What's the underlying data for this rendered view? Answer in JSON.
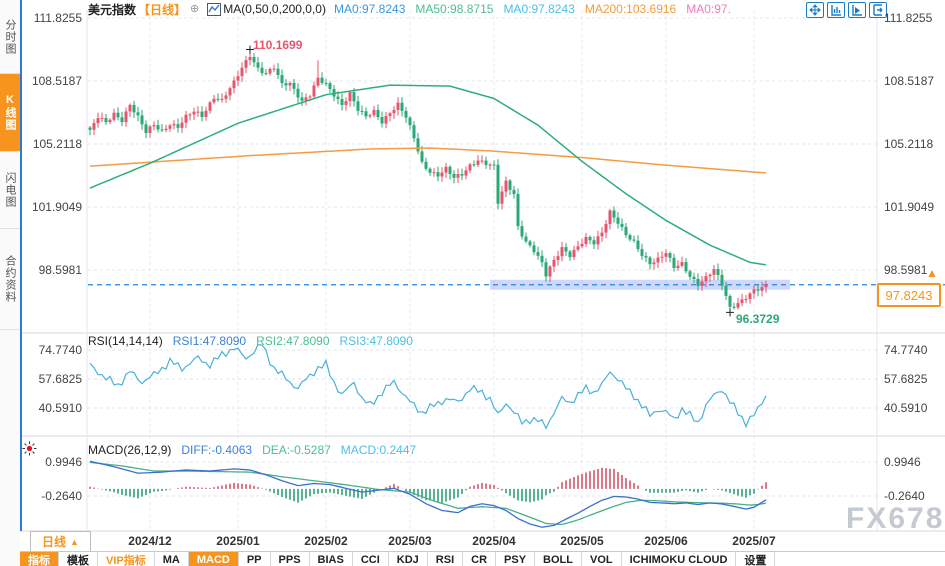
{
  "header": {
    "symbol": "美元指数",
    "period": "【日线】",
    "add_icon": "⊕",
    "ma_settings": "MA(0,50,0,200,0,0)",
    "ma_values": [
      {
        "label": "MA0:97.8243",
        "color": "#3b97e3"
      },
      {
        "label": "MA50:98.8715",
        "color": "#4cc08f"
      },
      {
        "label": "MA0:97.8243",
        "color": "#49c0e8"
      },
      {
        "label": "MA200:103.6916",
        "color": "#f59a3d"
      },
      {
        "label": "MA0:97.",
        "color": "#f07ab8"
      }
    ],
    "icons": [
      "pan-crosshair-icon",
      "axis-scale-icon",
      "axis-scroll-icon",
      "snap-latest-icon"
    ]
  },
  "sidebar": {
    "tabs": [
      {
        "label": "分时图",
        "active": false
      },
      {
        "label": "K线图",
        "active": true
      },
      {
        "label": "闪电图",
        "active": false
      },
      {
        "label": "合约资料",
        "active": false
      }
    ]
  },
  "annotations": {
    "high_label": "110.1699",
    "low_label": "96.3729",
    "last_price_label": "97.8243",
    "badge_arrow": "▲"
  },
  "panes": {
    "rsi": {
      "title": "RSI(14,14,14)",
      "rsi1": "RSI1:47.8090",
      "rsi2": "RSI2:47.8090",
      "rsi3": "RSI3:47.8090"
    },
    "macd": {
      "title": "MACD(26,12,9)",
      "diff": "DIFF:-0.4063",
      "dea": "DEA:-0.5287",
      "macd": "MACD:0.2447"
    }
  },
  "x_axis": {
    "period_label": "日线",
    "period_arrow": "▲",
    "dates": [
      "2024/12",
      "2025/01",
      "2025/02",
      "2025/03",
      "2025/04",
      "2025/05",
      "2025/06",
      "2025/07"
    ]
  },
  "bottom_toolbar": {
    "items": [
      {
        "label": "指标",
        "style": "active"
      },
      {
        "label": "模板",
        "style": ""
      },
      {
        "label": "VIP指标",
        "style": "vip"
      },
      {
        "label": "MA",
        "style": ""
      },
      {
        "label": "MACD",
        "style": "active"
      },
      {
        "label": "PP",
        "style": ""
      },
      {
        "label": "PPS",
        "style": ""
      },
      {
        "label": "BIAS",
        "style": ""
      },
      {
        "label": "CCI",
        "style": ""
      },
      {
        "label": "KDJ",
        "style": ""
      },
      {
        "label": "RSI",
        "style": ""
      },
      {
        "label": "CR",
        "style": ""
      },
      {
        "label": "PSY",
        "style": ""
      },
      {
        "label": "BOLL",
        "style": ""
      },
      {
        "label": "VOL",
        "style": ""
      },
      {
        "label": "ICHIMOKU CLOUD",
        "style": ""
      },
      {
        "label": "设置",
        "style": ""
      }
    ]
  },
  "watermark": {
    "text": "FX678"
  },
  "colors": {
    "candle_up": "#e4566e",
    "candle_down": "#2aa876",
    "ma50_line": "#2fae7c",
    "ma200_line": "#f59b45",
    "last_price_line": "#1e88e5",
    "highlight_band": "rgba(128,150,245,0.38)",
    "rsi_line": "#4ab0d9",
    "macd_diff": "#3b6fd0",
    "macd_dea": "#49b08a",
    "hist_pos": "#d4556a",
    "hist_neg": "#2f9e77",
    "accent": "#f7941d"
  },
  "chart_data": [
    {
      "type": "candlestick",
      "title": "美元指数 日线 (US Dollar Index, daily)",
      "days": 170,
      "y_ticks": [
        111.8255,
        108.5187,
        105.2118,
        101.9049,
        98.5981
      ],
      "months": [
        {
          "label": "2024/12",
          "day": 15
        },
        {
          "label": "2025/01",
          "day": 37
        },
        {
          "label": "2025/02",
          "day": 59
        },
        {
          "label": "2025/03",
          "day": 80
        },
        {
          "label": "2025/04",
          "day": 101
        },
        {
          "label": "2025/05",
          "day": 123
        },
        {
          "label": "2025/06",
          "day": 144
        },
        {
          "label": "2025/07",
          "day": 166
        }
      ],
      "close_anchors": [
        [
          0,
          105.9
        ],
        [
          2,
          106.6
        ],
        [
          4,
          106.3
        ],
        [
          6,
          106.8
        ],
        [
          8,
          106.5
        ],
        [
          10,
          107.3
        ],
        [
          12,
          106.6
        ],
        [
          14,
          105.8
        ],
        [
          16,
          106.2
        ],
        [
          18,
          105.9
        ],
        [
          20,
          106.3
        ],
        [
          22,
          106.1
        ],
        [
          24,
          106.6
        ],
        [
          26,
          106.9
        ],
        [
          28,
          106.7
        ],
        [
          31,
          107.7
        ],
        [
          33,
          107.5
        ],
        [
          36,
          108.4
        ],
        [
          38,
          109.2
        ],
        [
          40,
          109.9
        ],
        [
          42,
          109.2
        ],
        [
          44,
          108.9
        ],
        [
          46,
          109.2
        ],
        [
          48,
          108.3
        ],
        [
          50,
          108.4
        ],
        [
          53,
          107.5
        ],
        [
          55,
          107.8
        ],
        [
          57,
          108.6
        ],
        [
          59,
          108.3
        ],
        [
          61,
          107.8
        ],
        [
          63,
          107.3
        ],
        [
          65,
          107.9
        ],
        [
          67,
          107.0
        ],
        [
          69,
          106.6
        ],
        [
          71,
          106.9
        ],
        [
          73,
          106.4
        ],
        [
          75,
          106.9
        ],
        [
          77,
          107.3
        ],
        [
          79,
          106.6
        ],
        [
          81,
          105.5
        ],
        [
          83,
          104.2
        ],
        [
          85,
          103.8
        ],
        [
          87,
          103.6
        ],
        [
          89,
          103.9
        ],
        [
          91,
          103.4
        ],
        [
          93,
          103.6
        ],
        [
          95,
          104.1
        ],
        [
          97,
          104.4
        ],
        [
          99,
          104.2
        ],
        [
          101,
          104.0
        ],
        [
          102,
          102.1
        ],
        [
          104,
          103.2
        ],
        [
          106,
          102.6
        ],
        [
          107,
          100.9
        ],
        [
          109,
          100.1
        ],
        [
          111,
          99.6
        ],
        [
          113,
          98.9
        ],
        [
          114,
          98.3
        ],
        [
          116,
          99.1
        ],
        [
          118,
          99.8
        ],
        [
          120,
          99.4
        ],
        [
          122,
          99.8
        ],
        [
          124,
          100.2
        ],
        [
          126,
          100.0
        ],
        [
          128,
          100.6
        ],
        [
          130,
          101.7
        ],
        [
          132,
          101.1
        ],
        [
          134,
          100.4
        ],
        [
          136,
          100.0
        ],
        [
          138,
          99.4
        ],
        [
          140,
          99.0
        ],
        [
          142,
          99.2
        ],
        [
          144,
          99.5
        ],
        [
          146,
          98.7
        ],
        [
          148,
          98.9
        ],
        [
          150,
          98.3
        ],
        [
          152,
          97.9
        ],
        [
          154,
          98.2
        ],
        [
          156,
          98.6
        ],
        [
          158,
          97.8
        ],
        [
          160,
          96.6
        ],
        [
          162,
          96.9
        ],
        [
          164,
          97.2
        ],
        [
          166,
          97.5
        ],
        [
          168,
          97.6
        ],
        [
          169,
          97.82
        ]
      ],
      "ma50_anchors": [
        [
          0,
          102.9
        ],
        [
          15,
          104.2
        ],
        [
          37,
          106.3
        ],
        [
          59,
          107.8
        ],
        [
          75,
          108.3
        ],
        [
          90,
          108.25
        ],
        [
          101,
          107.6
        ],
        [
          112,
          106.2
        ],
        [
          123,
          104.3
        ],
        [
          134,
          102.6
        ],
        [
          144,
          101.2
        ],
        [
          155,
          99.9
        ],
        [
          165,
          99.0
        ],
        [
          169,
          98.87
        ]
      ],
      "ma200_anchors": [
        [
          0,
          104.05
        ],
        [
          40,
          104.6
        ],
        [
          70,
          104.95
        ],
        [
          85,
          105.0
        ],
        [
          100,
          104.85
        ],
        [
          123,
          104.5
        ],
        [
          144,
          104.1
        ],
        [
          169,
          103.69
        ]
      ],
      "high_point": {
        "day": 40,
        "value": 110.1699
      },
      "low_point": {
        "day": 160,
        "value": 96.3729
      },
      "wick_overrides": {
        "57": 109.6
      },
      "last_close": 97.8243,
      "band_days": [
        100,
        175
      ]
    },
    {
      "type": "line",
      "name": "RSI",
      "params": "(14,14,14)",
      "y_ticks": [
        74.774,
        57.6825,
        40.591
      ],
      "end_values": {
        "rsi1": 47.809,
        "rsi2": 47.809,
        "rsi3": 47.809
      },
      "anchors": [
        [
          0,
          66
        ],
        [
          4,
          58
        ],
        [
          7,
          54
        ],
        [
          10,
          62
        ],
        [
          13,
          56
        ],
        [
          16,
          60
        ],
        [
          20,
          68
        ],
        [
          23,
          64
        ],
        [
          27,
          70
        ],
        [
          30,
          66
        ],
        [
          33,
          72
        ],
        [
          36,
          76
        ],
        [
          39,
          70
        ],
        [
          41,
          74
        ],
        [
          43,
          78
        ],
        [
          46,
          64
        ],
        [
          49,
          58
        ],
        [
          52,
          52
        ],
        [
          55,
          60
        ],
        [
          57,
          64
        ],
        [
          59,
          66
        ],
        [
          61,
          56
        ],
        [
          63,
          48
        ],
        [
          66,
          56
        ],
        [
          68,
          46
        ],
        [
          70,
          42
        ],
        [
          73,
          50
        ],
        [
          76,
          56
        ],
        [
          78,
          50
        ],
        [
          80,
          44
        ],
        [
          83,
          38
        ],
        [
          86,
          42
        ],
        [
          89,
          46
        ],
        [
          92,
          44
        ],
        [
          95,
          52
        ],
        [
          98,
          50
        ],
        [
          100,
          46
        ],
        [
          102,
          36
        ],
        [
          104,
          44
        ],
        [
          106,
          38
        ],
        [
          108,
          32
        ],
        [
          110,
          34
        ],
        [
          112,
          33
        ],
        [
          114,
          30
        ],
        [
          116,
          38
        ],
        [
          118,
          46
        ],
        [
          120,
          44
        ],
        [
          122,
          48
        ],
        [
          124,
          52
        ],
        [
          126,
          50
        ],
        [
          128,
          54
        ],
        [
          130,
          62
        ],
        [
          132,
          58
        ],
        [
          134,
          52
        ],
        [
          136,
          48
        ],
        [
          138,
          42
        ],
        [
          140,
          36
        ],
        [
          142,
          40
        ],
        [
          144,
          38
        ],
        [
          146,
          34
        ],
        [
          148,
          40
        ],
        [
          150,
          36
        ],
        [
          152,
          32
        ],
        [
          154,
          42
        ],
        [
          156,
          48
        ],
        [
          158,
          52
        ],
        [
          160,
          44
        ],
        [
          162,
          38
        ],
        [
          164,
          32
        ],
        [
          166,
          36
        ],
        [
          168,
          44
        ],
        [
          169,
          47.81
        ]
      ]
    },
    {
      "type": "macd",
      "name": "MACD",
      "params": "(26,12,9)",
      "y_ticks": [
        0.9946,
        -0.264
      ],
      "end_values": {
        "diff": -0.4063,
        "dea": -0.5287,
        "macd": 0.2447
      },
      "hist_formula": "2*(diff-dea)",
      "diff_anchors": [
        [
          0,
          1.02
        ],
        [
          6,
          0.82
        ],
        [
          12,
          0.58
        ],
        [
          18,
          0.62
        ],
        [
          24,
          0.7
        ],
        [
          30,
          0.66
        ],
        [
          36,
          0.74
        ],
        [
          40,
          0.7
        ],
        [
          44,
          0.52
        ],
        [
          48,
          0.3
        ],
        [
          52,
          0.12
        ],
        [
          56,
          0.2
        ],
        [
          60,
          0.16
        ],
        [
          64,
          0.02
        ],
        [
          68,
          -0.12
        ],
        [
          72,
          -0.05
        ],
        [
          76,
          0.02
        ],
        [
          80,
          -0.2
        ],
        [
          84,
          -0.55
        ],
        [
          88,
          -0.8
        ],
        [
          92,
          -0.88
        ],
        [
          95,
          -0.65
        ],
        [
          98,
          -0.55
        ],
        [
          101,
          -0.62
        ],
        [
          104,
          -0.8
        ],
        [
          107,
          -1.1
        ],
        [
          110,
          -1.3
        ],
        [
          113,
          -1.42
        ],
        [
          116,
          -1.35
        ],
        [
          119,
          -1.12
        ],
        [
          122,
          -0.9
        ],
        [
          125,
          -0.65
        ],
        [
          128,
          -0.42
        ],
        [
          131,
          -0.28
        ],
        [
          134,
          -0.3
        ],
        [
          137,
          -0.38
        ],
        [
          140,
          -0.5
        ],
        [
          143,
          -0.52
        ],
        [
          146,
          -0.55
        ],
        [
          149,
          -0.52
        ],
        [
          152,
          -0.58
        ],
        [
          155,
          -0.52
        ],
        [
          158,
          -0.56
        ],
        [
          161,
          -0.65
        ],
        [
          164,
          -0.75
        ],
        [
          166,
          -0.68
        ],
        [
          169,
          -0.4063
        ]
      ],
      "dea_anchors": [
        [
          0,
          0.98
        ],
        [
          8,
          0.85
        ],
        [
          16,
          0.66
        ],
        [
          24,
          0.66
        ],
        [
          32,
          0.64
        ],
        [
          40,
          0.62
        ],
        [
          48,
          0.45
        ],
        [
          56,
          0.3
        ],
        [
          64,
          0.15
        ],
        [
          72,
          -0.02
        ],
        [
          80,
          -0.12
        ],
        [
          86,
          -0.45
        ],
        [
          92,
          -0.72
        ],
        [
          98,
          -0.66
        ],
        [
          104,
          -0.72
        ],
        [
          110,
          -1.05
        ],
        [
          114,
          -1.28
        ],
        [
          118,
          -1.32
        ],
        [
          122,
          -1.15
        ],
        [
          126,
          -0.92
        ],
        [
          130,
          -0.7
        ],
        [
          134,
          -0.5
        ],
        [
          138,
          -0.42
        ],
        [
          142,
          -0.44
        ],
        [
          146,
          -0.48
        ],
        [
          150,
          -0.5
        ],
        [
          154,
          -0.52
        ],
        [
          158,
          -0.53
        ],
        [
          162,
          -0.56
        ],
        [
          165,
          -0.6
        ],
        [
          167,
          -0.58
        ],
        [
          169,
          -0.5287
        ]
      ]
    }
  ]
}
